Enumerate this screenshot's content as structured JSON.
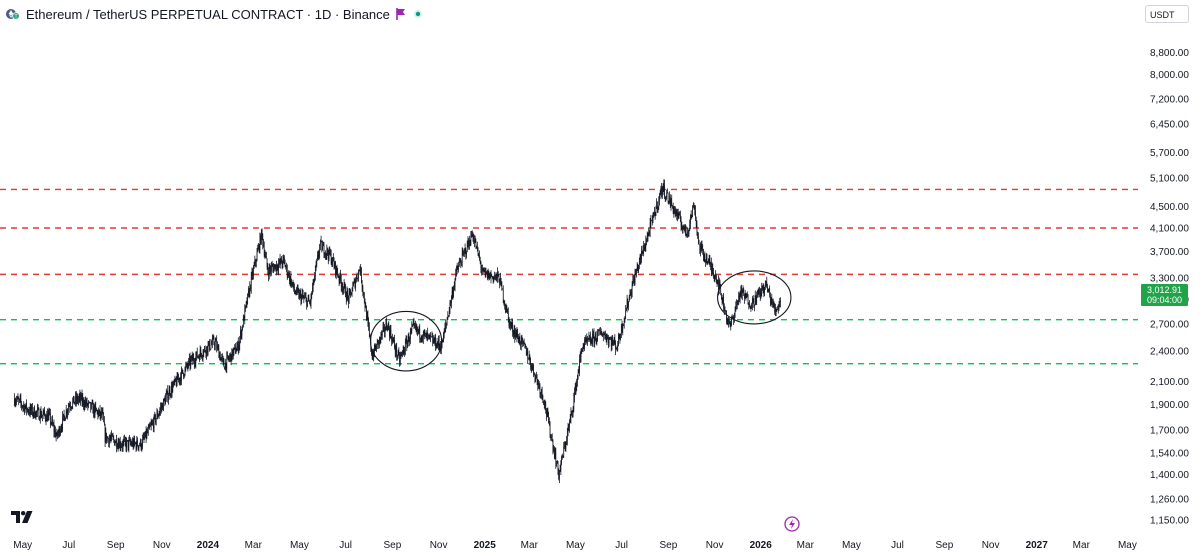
{
  "header": {
    "title": "Ethereum / TetherUS PERPETUAL CONTRACT · 1D · Binance"
  },
  "currency": "USDT",
  "last_price": {
    "value": "3,012.91",
    "countdown": "09:04:00"
  },
  "colors": {
    "resistance": "#e53935",
    "support": "#00c853",
    "candle": "#131722",
    "badge": "#21a34a"
  },
  "icons": [
    "ethereum-icon",
    "flag-icon",
    "live-dot-icon",
    "tradingview-logo-icon",
    "lightning-icon"
  ],
  "chart_data": {
    "type": "candlestick",
    "title": "Ethereum / TetherUS PERPETUAL CONTRACT · 1D · Binance",
    "y_scale": "log",
    "ylim": [
      1100,
      9800
    ],
    "y_ticks": [
      8800,
      8000,
      7200,
      6450,
      5700,
      5100,
      4500,
      4100,
      3700,
      3300,
      3000,
      2700,
      2400,
      2100,
      1900,
      1700,
      1540,
      1400,
      1260,
      1150
    ],
    "y_tick_labels": [
      "8,800.00",
      "8,000.00",
      "7,200.00",
      "6,450.00",
      "5,700.00",
      "5,100.00",
      "4,500.00",
      "4,100.00",
      "3,700.00",
      "3,300.00",
      "3,000.00",
      "2,700.00",
      "2,400.00",
      "2,100.00",
      "1,900.00",
      "1,700.00",
      "1,540.00",
      "1,400.00",
      "1,260.00",
      "1,150.00"
    ],
    "x_ticks": [
      {
        "label": "May",
        "date": "2023-05",
        "bold": false
      },
      {
        "label": "Jul",
        "date": "2023-07",
        "bold": false
      },
      {
        "label": "Sep",
        "date": "2023-09",
        "bold": false
      },
      {
        "label": "Nov",
        "date": "2023-11",
        "bold": false
      },
      {
        "label": "2024",
        "date": "2024-01",
        "bold": true
      },
      {
        "label": "Mar",
        "date": "2024-03",
        "bold": false
      },
      {
        "label": "May",
        "date": "2024-05",
        "bold": false
      },
      {
        "label": "Jul",
        "date": "2024-07",
        "bold": false
      },
      {
        "label": "Sep",
        "date": "2024-09",
        "bold": false
      },
      {
        "label": "Nov",
        "date": "2024-11",
        "bold": false
      },
      {
        "label": "2025",
        "date": "2025-01",
        "bold": true
      },
      {
        "label": "Mar",
        "date": "2025-03",
        "bold": false
      },
      {
        "label": "May",
        "date": "2025-05",
        "bold": false
      },
      {
        "label": "Jul",
        "date": "2025-07",
        "bold": false
      },
      {
        "label": "Sep",
        "date": "2025-09",
        "bold": false
      },
      {
        "label": "Nov",
        "date": "2025-11",
        "bold": false
      },
      {
        "label": "2026",
        "date": "2026-01",
        "bold": true
      },
      {
        "label": "Mar",
        "date": "2026-03",
        "bold": false
      },
      {
        "label": "May",
        "date": "2026-05",
        "bold": false
      },
      {
        "label": "Jul",
        "date": "2026-07",
        "bold": false
      },
      {
        "label": "Sep",
        "date": "2026-09",
        "bold": false
      },
      {
        "label": "Nov",
        "date": "2026-11",
        "bold": false
      },
      {
        "label": "2027",
        "date": "2027-01",
        "bold": true
      },
      {
        "label": "Mar",
        "date": "2027-03",
        "bold": false
      },
      {
        "label": "May",
        "date": "2027-05",
        "bold": false
      }
    ],
    "price_path": [
      [
        "2023-04-20",
        1950
      ],
      [
        "2023-05-10",
        1850
      ],
      [
        "2023-06-05",
        1800
      ],
      [
        "2023-06-15",
        1650
      ],
      [
        "2023-07-01",
        1900
      ],
      [
        "2023-07-15",
        1950
      ],
      [
        "2023-08-15",
        1800
      ],
      [
        "2023-08-18",
        1650
      ],
      [
        "2023-09-10",
        1600
      ],
      [
        "2023-10-05",
        1600
      ],
      [
        "2023-10-25",
        1800
      ],
      [
        "2023-11-10",
        2000
      ],
      [
        "2023-12-10",
        2300
      ],
      [
        "2024-01-10",
        2500
      ],
      [
        "2024-01-22",
        2250
      ],
      [
        "2024-02-10",
        2450
      ],
      [
        "2024-02-28",
        3300
      ],
      [
        "2024-03-12",
        4000
      ],
      [
        "2024-03-20",
        3400
      ],
      [
        "2024-04-10",
        3550
      ],
      [
        "2024-04-25",
        3100
      ],
      [
        "2024-05-15",
        2950
      ],
      [
        "2024-05-28",
        3800
      ],
      [
        "2024-06-10",
        3650
      ],
      [
        "2024-07-05",
        3000
      ],
      [
        "2024-07-20",
        3450
      ],
      [
        "2024-08-05",
        2350
      ],
      [
        "2024-08-25",
        2700
      ],
      [
        "2024-09-10",
        2300
      ],
      [
        "2024-09-28",
        2650
      ],
      [
        "2024-10-15",
        2550
      ],
      [
        "2024-11-05",
        2450
      ],
      [
        "2024-11-25",
        3400
      ],
      [
        "2024-12-16",
        4000
      ],
      [
        "2024-12-30",
        3350
      ],
      [
        "2025-01-20",
        3300
      ],
      [
        "2025-02-03",
        2700
      ],
      [
        "2025-02-25",
        2400
      ],
      [
        "2025-03-20",
        1950
      ],
      [
        "2025-04-09",
        1400
      ],
      [
        "2025-04-25",
        1800
      ],
      [
        "2025-05-10",
        2450
      ],
      [
        "2025-06-05",
        2600
      ],
      [
        "2025-06-25",
        2450
      ],
      [
        "2025-07-15",
        3200
      ],
      [
        "2025-08-10",
        4200
      ],
      [
        "2025-08-24",
        4900
      ],
      [
        "2025-09-10",
        4400
      ],
      [
        "2025-09-25",
        4000
      ],
      [
        "2025-10-05",
        4550
      ],
      [
        "2025-10-11",
        3800
      ],
      [
        "2025-11-04",
        3300
      ],
      [
        "2025-11-21",
        2650
      ],
      [
        "2025-12-05",
        3100
      ],
      [
        "2025-12-20",
        2950
      ],
      [
        "2026-01-08",
        3200
      ],
      [
        "2026-01-20",
        2850
      ],
      [
        "2026-01-28",
        3012.91
      ]
    ],
    "horizontal_levels": [
      {
        "kind": "resistance",
        "price": 4850
      },
      {
        "kind": "resistance",
        "price": 4100
      },
      {
        "kind": "resistance",
        "price": 3350
      },
      {
        "kind": "support",
        "price": 2750
      },
      {
        "kind": "support",
        "price": 2270
      }
    ],
    "annotations": [
      {
        "shape": "ellipse",
        "from": "2024-08-03",
        "to": "2024-11-05",
        "price_high": 2850,
        "price_low": 2200
      },
      {
        "shape": "ellipse",
        "from": "2025-11-05",
        "to": "2026-02-10",
        "price_high": 3400,
        "price_low": 2700
      }
    ],
    "last_price_label": "3,012.91"
  }
}
